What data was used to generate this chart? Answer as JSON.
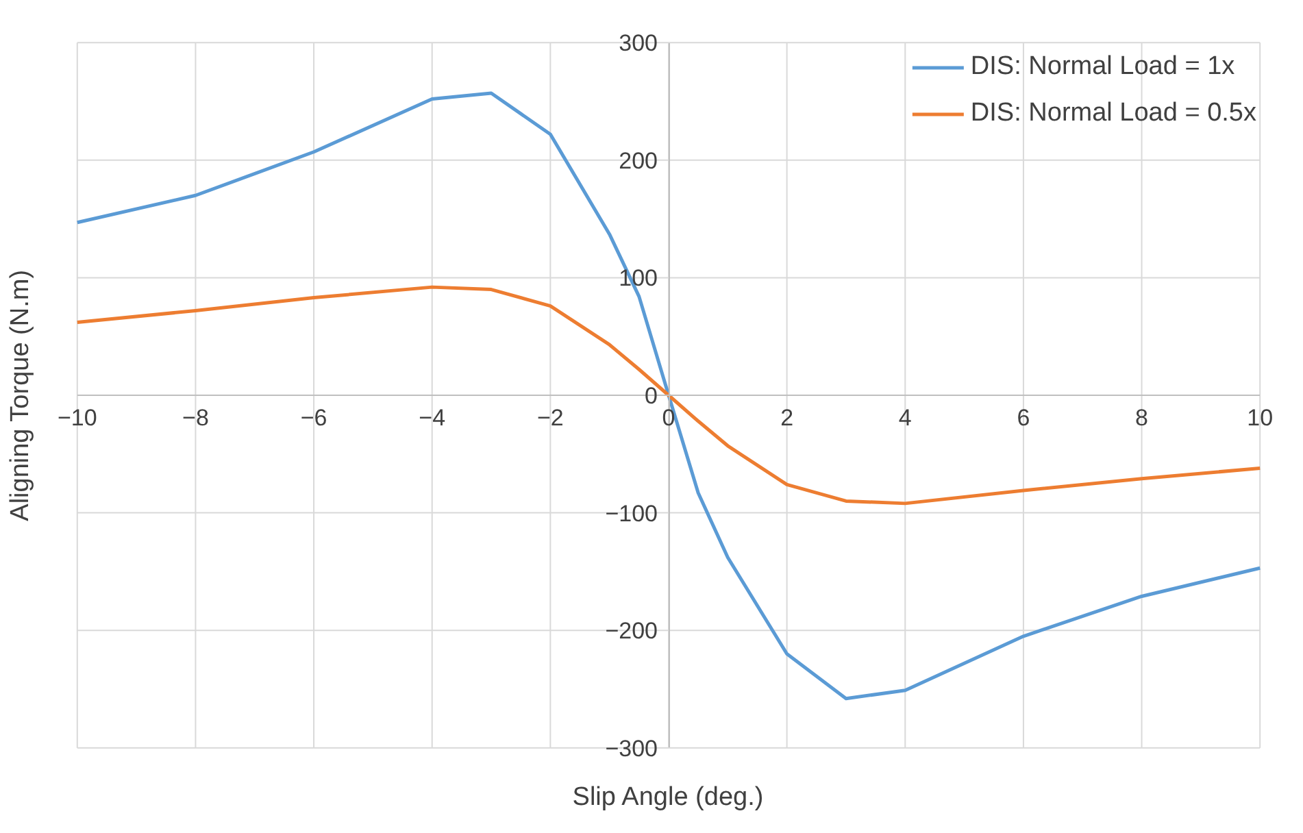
{
  "chart_data": {
    "type": "line",
    "xlabel": "Slip Angle (deg.)",
    "ylabel": "Aligning Torque (N.m)",
    "xlim": [
      -10,
      10
    ],
    "xticks": [
      -10,
      -8,
      -6,
      -4,
      -2,
      0,
      2,
      4,
      6,
      8,
      10
    ],
    "ylim": [
      -300,
      300
    ],
    "yticks": [
      -300,
      -200,
      -100,
      0,
      100,
      200,
      300
    ],
    "grid": true,
    "legend": "top right",
    "marker": "none",
    "line_style": "solid",
    "x": [
      -10,
      -8,
      -6,
      -4,
      -3,
      -2,
      -1,
      -0.5,
      0,
      0.5,
      1,
      2,
      3,
      4,
      6,
      8,
      10
    ],
    "series": [
      {
        "name": "DIS: Normal Load = 1x",
        "color": "#5b9bd5",
        "values": [
          147,
          170,
          207,
          252,
          257,
          222,
          137,
          84,
          0,
          -83,
          -138,
          -220,
          -258,
          -251,
          -205,
          -171,
          -147
        ]
      },
      {
        "name": "DIS: Normal Load = 0.5x",
        "color": "#ed7d31",
        "values": [
          62,
          72,
          83,
          92,
          90,
          76,
          43,
          22,
          0,
          -22,
          -43,
          -76,
          -90,
          -92,
          -81,
          -71,
          -62
        ]
      }
    ]
  }
}
